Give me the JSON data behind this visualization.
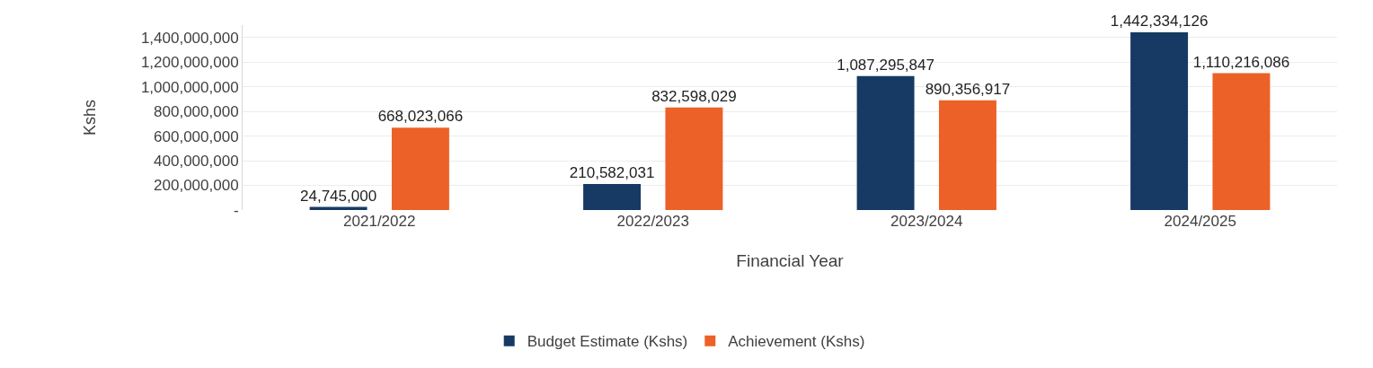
{
  "chart_data": {
    "type": "bar",
    "xlabel": "Financial Year",
    "ylabel": "Kshs",
    "categories": [
      "2021/2022",
      "2022/2023",
      "2023/2024",
      "2024/2025"
    ],
    "series": [
      {
        "name": "Budget Estimate (Kshs)",
        "color": "#163a63",
        "values": [
          24745000,
          210582031,
          1087295847,
          1442334126
        ],
        "value_labels": [
          "24,745,000",
          "210,582,031",
          "1,087,295,847",
          "1,442,334,126"
        ]
      },
      {
        "name": "Achievement (Kshs)",
        "color": "#ec6127",
        "values": [
          668023066,
          832598029,
          890356917,
          1110216086
        ],
        "value_labels": [
          "668,023,066",
          "832,598,029",
          "890,356,917",
          "1,110,216,086"
        ]
      }
    ],
    "ylim": [
      0,
      1500000000
    ],
    "yticks": [
      {
        "value": 0,
        "label": "-"
      },
      {
        "value": 200000000,
        "label": "200,000,000"
      },
      {
        "value": 400000000,
        "label": "400,000,000"
      },
      {
        "value": 600000000,
        "label": "600,000,000"
      },
      {
        "value": 800000000,
        "label": "800,000,000"
      },
      {
        "value": 1000000000,
        "label": "1,000,000,000"
      },
      {
        "value": 1200000000,
        "label": "1,200,000,000"
      },
      {
        "value": 1400000000,
        "label": "1,400,000,000"
      }
    ],
    "grid": "y",
    "legend": "bottom"
  }
}
